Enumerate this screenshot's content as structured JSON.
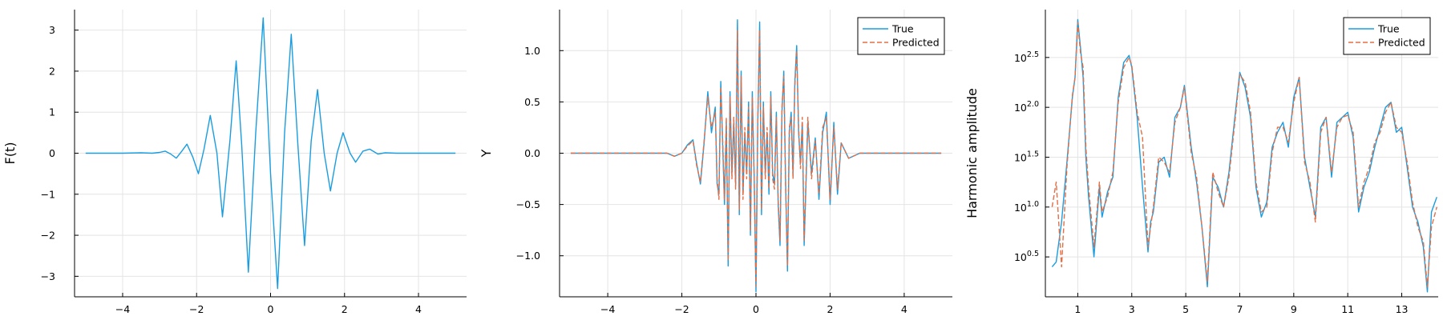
{
  "chart_data": [
    {
      "type": "line",
      "title": "",
      "xlabel": "",
      "ylabel": "F(t)",
      "xlim": [
        -5.3,
        5.3
      ],
      "ylim": [
        -3.5,
        3.5
      ],
      "xticks": [
        -4,
        -2,
        0,
        2,
        4
      ],
      "yticks": [
        -3,
        -2,
        -1,
        0,
        1,
        2,
        3
      ],
      "xtick_labels": [
        "−4",
        "−2",
        "0",
        "2",
        "4"
      ],
      "ytick_labels": [
        "−3",
        "−2",
        "−1",
        "0",
        "1",
        "2",
        "3"
      ],
      "grid": true,
      "legend": "none",
      "series": [
        {
          "color": "#1a9de0",
          "style": "solid",
          "x": [
            -5,
            -4.5,
            -4,
            -3.5,
            -3.2,
            -3,
            -2.85,
            -2.7,
            -2.55,
            -2.4,
            -2.26,
            -2.1,
            -1.95,
            -1.8,
            -1.63,
            -1.45,
            -1.3,
            -1.1,
            -0.93,
            -0.78,
            -0.6,
            -0.4,
            -0.2,
            0,
            0.19,
            0.38,
            0.56,
            0.74,
            0.92,
            1.1,
            1.27,
            1.45,
            1.62,
            1.8,
            1.96,
            2.15,
            2.3,
            2.5,
            2.68,
            2.9,
            3.1,
            3.4,
            3.8,
            4.5,
            5
          ],
          "y": [
            0,
            0,
            0,
            0.01,
            0,
            0.02,
            0.05,
            -0.02,
            -0.12,
            0.05,
            0.22,
            -0.1,
            -0.5,
            0.1,
            0.92,
            0,
            -1.55,
            0.3,
            2.25,
            0.2,
            -2.9,
            0.5,
            3.3,
            -0.5,
            -3.3,
            0.5,
            2.9,
            0.2,
            -2.25,
            0.3,
            1.55,
            0,
            -0.92,
            0,
            0.5,
            0,
            -0.22,
            0.05,
            0.1,
            -0.02,
            0.01,
            0,
            0,
            0,
            0
          ]
        }
      ]
    },
    {
      "type": "line",
      "title": "",
      "xlabel": "",
      "ylabel": "Y",
      "xlim": [
        -5.3,
        5.3
      ],
      "ylim": [
        -1.4,
        1.4
      ],
      "xticks": [
        -4,
        -2,
        0,
        2,
        4
      ],
      "yticks": [
        -1.0,
        -0.5,
        0.0,
        0.5,
        1.0
      ],
      "xtick_labels": [
        "−4",
        "−2",
        "0",
        "2",
        "4"
      ],
      "ytick_labels": [
        "−1.0",
        "−0.5",
        "0.0",
        "0.5",
        "1.0"
      ],
      "grid": true,
      "legend": "top-right",
      "series": [
        {
          "name": "True",
          "color": "#1a9de0",
          "style": "solid",
          "x": [
            -5,
            -4,
            -3,
            -2.4,
            -2.2,
            -2,
            -1.85,
            -1.7,
            -1.6,
            -1.5,
            -1.4,
            -1.3,
            -1.2,
            -1.1,
            -1.05,
            -1,
            -0.95,
            -0.9,
            -0.85,
            -0.8,
            -0.75,
            -0.7,
            -0.65,
            -0.6,
            -0.55,
            -0.5,
            -0.45,
            -0.4,
            -0.35,
            -0.3,
            -0.25,
            -0.2,
            -0.15,
            -0.1,
            -0.05,
            0,
            0.05,
            0.1,
            0.15,
            0.2,
            0.25,
            0.3,
            0.35,
            0.4,
            0.45,
            0.5,
            0.55,
            0.6,
            0.65,
            0.7,
            0.75,
            0.8,
            0.85,
            0.9,
            0.95,
            1,
            1.05,
            1.1,
            1.15,
            1.2,
            1.25,
            1.3,
            1.4,
            1.5,
            1.6,
            1.7,
            1.8,
            1.9,
            2,
            2.1,
            2.2,
            2.3,
            2.5,
            2.8,
            3.2,
            4,
            5
          ],
          "y": [
            0,
            0,
            0,
            0,
            -0.03,
            0,
            0.08,
            0.13,
            -0.1,
            -0.3,
            0.1,
            0.6,
            0.2,
            0.45,
            -0.3,
            -0.4,
            0.7,
            0.1,
            -0.5,
            0.3,
            -1.1,
            0.6,
            -0.2,
            0.3,
            -0.3,
            1.3,
            -0.6,
            0.8,
            -0.4,
            0.2,
            -0.2,
            0.5,
            -0.8,
            0.6,
            -0.2,
            -1.35,
            0.3,
            1.28,
            -0.6,
            0.5,
            -0.2,
            0.2,
            -0.4,
            0.6,
            -0.2,
            -0.3,
            0.4,
            -0.5,
            -0.9,
            0.4,
            0.8,
            -0.3,
            -1.15,
            0.2,
            0.4,
            -0.2,
            0.7,
            1.05,
            0.2,
            -0.1,
            0.3,
            -0.9,
            0.3,
            -0.2,
            0.15,
            -0.45,
            0.2,
            0.4,
            -0.5,
            0.3,
            -0.4,
            0.1,
            -0.05,
            0,
            0,
            0,
            0
          ]
        },
        {
          "name": "Predicted",
          "color": "#e26f46",
          "style": "dashed",
          "x": [
            -5,
            -4,
            -3,
            -2.4,
            -2.2,
            -2,
            -1.85,
            -1.7,
            -1.6,
            -1.5,
            -1.4,
            -1.3,
            -1.2,
            -1.1,
            -1.05,
            -1,
            -0.95,
            -0.9,
            -0.85,
            -0.8,
            -0.75,
            -0.7,
            -0.65,
            -0.6,
            -0.55,
            -0.5,
            -0.45,
            -0.4,
            -0.35,
            -0.3,
            -0.25,
            -0.2,
            -0.15,
            -0.1,
            -0.05,
            0,
            0.05,
            0.1,
            0.15,
            0.2,
            0.25,
            0.3,
            0.35,
            0.4,
            0.45,
            0.5,
            0.55,
            0.6,
            0.65,
            0.7,
            0.75,
            0.8,
            0.85,
            0.9,
            0.95,
            1,
            1.05,
            1.1,
            1.15,
            1.2,
            1.25,
            1.3,
            1.4,
            1.5,
            1.6,
            1.7,
            1.8,
            1.9,
            2,
            2.1,
            2.2,
            2.3,
            2.5,
            2.8,
            3.2,
            4,
            5
          ],
          "y": [
            0,
            0,
            0,
            0,
            -0.03,
            0,
            0.07,
            0.12,
            -0.12,
            -0.28,
            0.12,
            0.55,
            0.25,
            0.4,
            -0.25,
            -0.45,
            0.65,
            0.15,
            -0.45,
            0.35,
            -1.05,
            0.55,
            -0.25,
            0.35,
            -0.35,
            1.2,
            -0.55,
            0.75,
            -0.45,
            0.25,
            -0.25,
            0.45,
            -0.75,
            0.55,
            -0.25,
            -1.3,
            0.35,
            1.2,
            -0.55,
            0.45,
            -0.25,
            0.25,
            -0.35,
            0.55,
            -0.25,
            -0.35,
            0.35,
            -0.45,
            -0.85,
            0.45,
            0.75,
            -0.35,
            -1.1,
            0.25,
            0.35,
            -0.25,
            0.65,
            1.0,
            0.25,
            -0.15,
            0.35,
            -0.85,
            0.35,
            -0.25,
            0.12,
            -0.4,
            0.25,
            0.35,
            -0.45,
            0.25,
            -0.35,
            0.1,
            -0.05,
            0,
            0,
            0,
            0
          ]
        }
      ]
    },
    {
      "type": "line",
      "title": "",
      "xlabel": "",
      "ylabel": "Harmonic amplitude",
      "yscale": "log10",
      "xlim": [
        -0.2,
        14.35
      ],
      "ylim": [
        0.1,
        2.98
      ],
      "xticks": [
        1,
        3,
        5,
        7,
        9,
        11,
        13
      ],
      "xtick_labels": [
        "1",
        "3",
        "5",
        "7",
        "9",
        "11",
        "13"
      ],
      "yticks_log10": [
        0.5,
        1.0,
        1.5,
        2.0,
        2.5
      ],
      "ytick_base": "10",
      "ytick_exponents": [
        "0.5",
        "1.0",
        "1.5",
        "2.0",
        "2.5"
      ],
      "grid": true,
      "legend": "top-right",
      "series": [
        {
          "name": "True",
          "color": "#1a9de0",
          "style": "solid",
          "x": [
            0.05,
            0.2,
            0.4,
            0.6,
            0.8,
            0.9,
            1.0,
            1.1,
            1.2,
            1.3,
            1.4,
            1.6,
            1.8,
            1.9,
            2.1,
            2.3,
            2.5,
            2.7,
            2.9,
            3.0,
            3.2,
            3.4,
            3.6,
            3.7,
            3.8,
            4.0,
            4.2,
            4.4,
            4.6,
            4.8,
            4.95,
            5.2,
            5.4,
            5.6,
            5.8,
            6.0,
            6.2,
            6.4,
            6.6,
            6.8,
            7.0,
            7.2,
            7.4,
            7.6,
            7.8,
            8.0,
            8.2,
            8.4,
            8.6,
            8.8,
            9.0,
            9.2,
            9.4,
            9.6,
            9.8,
            10.0,
            10.2,
            10.4,
            10.6,
            10.8,
            11.0,
            11.2,
            11.4,
            11.6,
            11.8,
            12.0,
            12.2,
            12.4,
            12.6,
            12.8,
            13.0,
            13.2,
            13.4,
            13.6,
            13.8,
            13.95,
            14.1,
            14.3
          ],
          "y": [
            0.4,
            0.45,
            0.85,
            1.45,
            2.1,
            2.3,
            2.88,
            2.6,
            2.3,
            1.5,
            1.1,
            0.5,
            1.2,
            0.9,
            1.15,
            1.3,
            2.1,
            2.45,
            2.52,
            2.4,
            1.9,
            1.2,
            0.55,
            0.85,
            0.95,
            1.45,
            1.5,
            1.3,
            1.9,
            2.0,
            2.22,
            1.6,
            1.25,
            0.8,
            0.2,
            1.3,
            1.2,
            1.0,
            1.35,
            1.85,
            2.35,
            2.2,
            1.9,
            1.2,
            0.9,
            1.05,
            1.6,
            1.75,
            1.85,
            1.6,
            2.1,
            2.3,
            1.5,
            1.2,
            0.9,
            1.8,
            1.9,
            1.3,
            1.85,
            1.9,
            1.95,
            1.7,
            0.95,
            1.2,
            1.35,
            1.6,
            1.8,
            2.0,
            2.05,
            1.75,
            1.8,
            1.4,
            1.0,
            0.85,
            0.6,
            0.15,
            0.95,
            1.1
          ]
        },
        {
          "name": "Predicted",
          "color": "#e26f46",
          "style": "dashed",
          "x": [
            0.05,
            0.2,
            0.4,
            0.6,
            0.8,
            0.9,
            1.0,
            1.1,
            1.2,
            1.3,
            1.4,
            1.6,
            1.8,
            1.9,
            2.1,
            2.3,
            2.5,
            2.7,
            2.9,
            3.0,
            3.2,
            3.4,
            3.6,
            3.7,
            3.8,
            4.0,
            4.2,
            4.4,
            4.6,
            4.8,
            4.95,
            5.2,
            5.4,
            5.6,
            5.8,
            6.0,
            6.2,
            6.4,
            6.6,
            6.8,
            7.0,
            7.2,
            7.4,
            7.6,
            7.8,
            8.0,
            8.2,
            8.4,
            8.6,
            8.8,
            9.0,
            9.2,
            9.4,
            9.6,
            9.8,
            10.0,
            10.2,
            10.4,
            10.6,
            10.8,
            11.0,
            11.2,
            11.4,
            11.6,
            11.8,
            12.0,
            12.2,
            12.4,
            12.6,
            12.8,
            13.0,
            13.2,
            13.4,
            13.6,
            13.8,
            13.95,
            14.1,
            14.3
          ],
          "y": [
            1.0,
            1.25,
            0.4,
            1.4,
            2.12,
            2.3,
            2.85,
            2.55,
            2.4,
            1.6,
            1.2,
            0.6,
            1.25,
            0.95,
            1.1,
            1.35,
            2.05,
            2.4,
            2.5,
            2.42,
            1.95,
            1.7,
            0.6,
            0.8,
            1.0,
            1.5,
            1.45,
            1.35,
            1.85,
            2.0,
            2.2,
            1.55,
            1.3,
            0.8,
            0.25,
            1.35,
            1.15,
            1.0,
            1.3,
            1.8,
            2.33,
            2.25,
            1.95,
            1.25,
            0.95,
            1.0,
            1.55,
            1.8,
            1.8,
            1.65,
            2.05,
            2.3,
            1.45,
            1.25,
            0.85,
            1.75,
            1.9,
            1.35,
            1.8,
            1.9,
            1.92,
            1.75,
            1.0,
            1.25,
            1.4,
            1.65,
            1.75,
            1.95,
            2.05,
            1.8,
            1.75,
            1.45,
            1.05,
            0.8,
            0.65,
            0.2,
            0.8,
            1.0
          ]
        }
      ]
    }
  ]
}
